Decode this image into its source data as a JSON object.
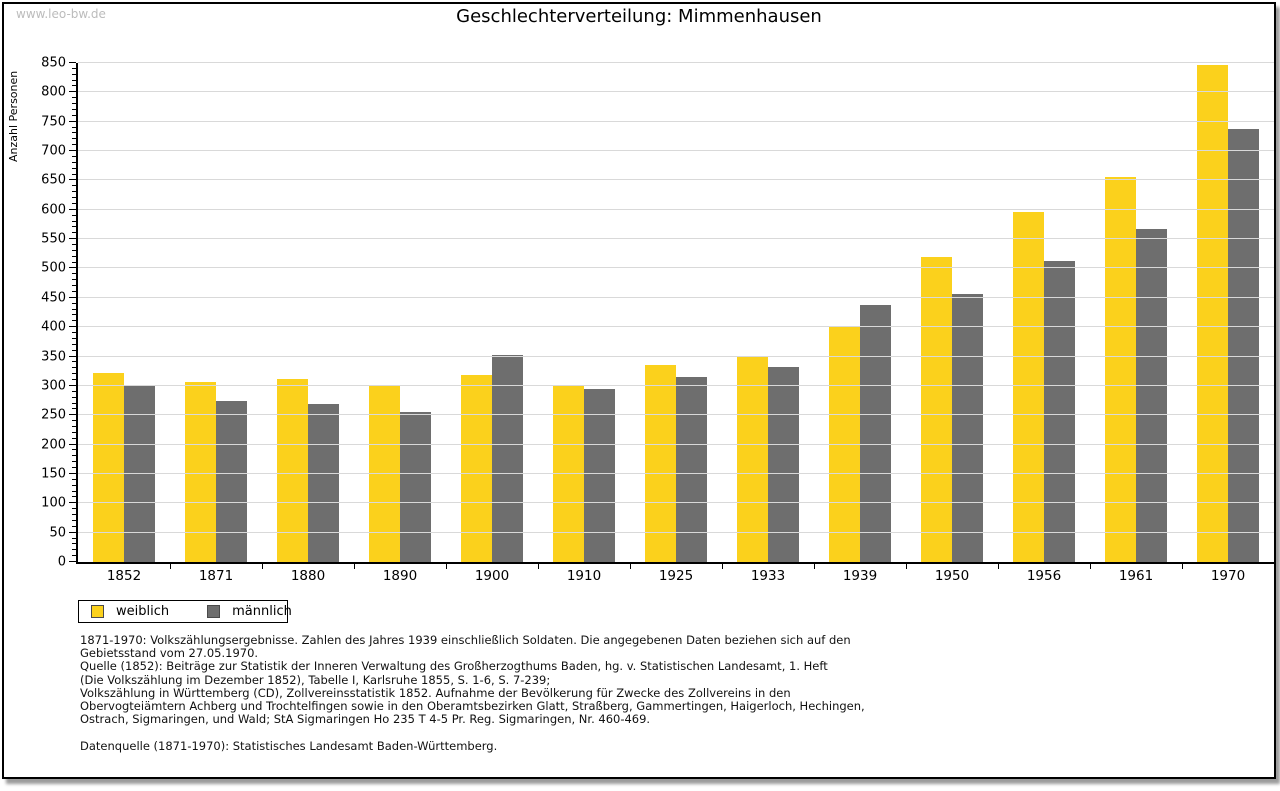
{
  "page": {
    "watermark": "www.leo-bw.de",
    "title": "Geschlechterverteilung: Mimmenhausen"
  },
  "chart_data": {
    "type": "bar",
    "title": "Geschlechterverteilung: Mimmenhausen",
    "ylabel": "Anzahl Personen",
    "xlabel": "",
    "ylim": [
      0,
      850
    ],
    "ytick_step": 50,
    "ytick_minor_step": 10,
    "grid": true,
    "legend_position": "bottom-left",
    "categories": [
      "1852",
      "1871",
      "1880",
      "1890",
      "1900",
      "1910",
      "1925",
      "1933",
      "1939",
      "1950",
      "1956",
      "1961",
      "1970"
    ],
    "series": [
      {
        "name": "weiblich",
        "color": "#FBD11C",
        "values": [
          322,
          306,
          312,
          300,
          318,
          302,
          336,
          349,
          402,
          520,
          597,
          655,
          847
        ]
      },
      {
        "name": "männlich",
        "color": "#6E6E6E",
        "values": [
          301,
          275,
          270,
          255,
          352,
          295,
          315,
          332,
          437,
          457,
          513,
          567,
          738
        ]
      }
    ]
  },
  "footnotes": {
    "lines": [
      "1871-1970: Volkszählungsergebnisse. Zahlen des Jahres 1939 einschließlich Soldaten. Die angegebenen Daten beziehen sich auf den",
      "Gebietsstand vom 27.05.1970.",
      "Quelle (1852): Beiträge zur Statistik der Inneren Verwaltung des Großherzogthums Baden, hg. v. Statistischen Landesamt, 1. Heft",
      "(Die Volkszählung im Dezember 1852), Tabelle I, Karlsruhe 1855, S. 1-6, S. 7-239;",
      "Volkszählung in Württemberg (CD), Zollvereinsstatistik 1852. Aufnahme der Bevölkerung für Zwecke des Zollvereins in den",
      "Obervogteiämtern Achberg und Trochtelfingen sowie in den Oberamtsbezirken Glatt, Straßberg, Gammertingen, Haigerloch, Hechingen,",
      "Ostrach, Sigmaringen, und Wald; StA Sigmaringen Ho 235 T 4-5 Pr. Reg. Sigmaringen, Nr. 460-469."
    ],
    "datasource": "Datenquelle (1871-1970): Statistisches Landesamt Baden-Württemberg."
  }
}
